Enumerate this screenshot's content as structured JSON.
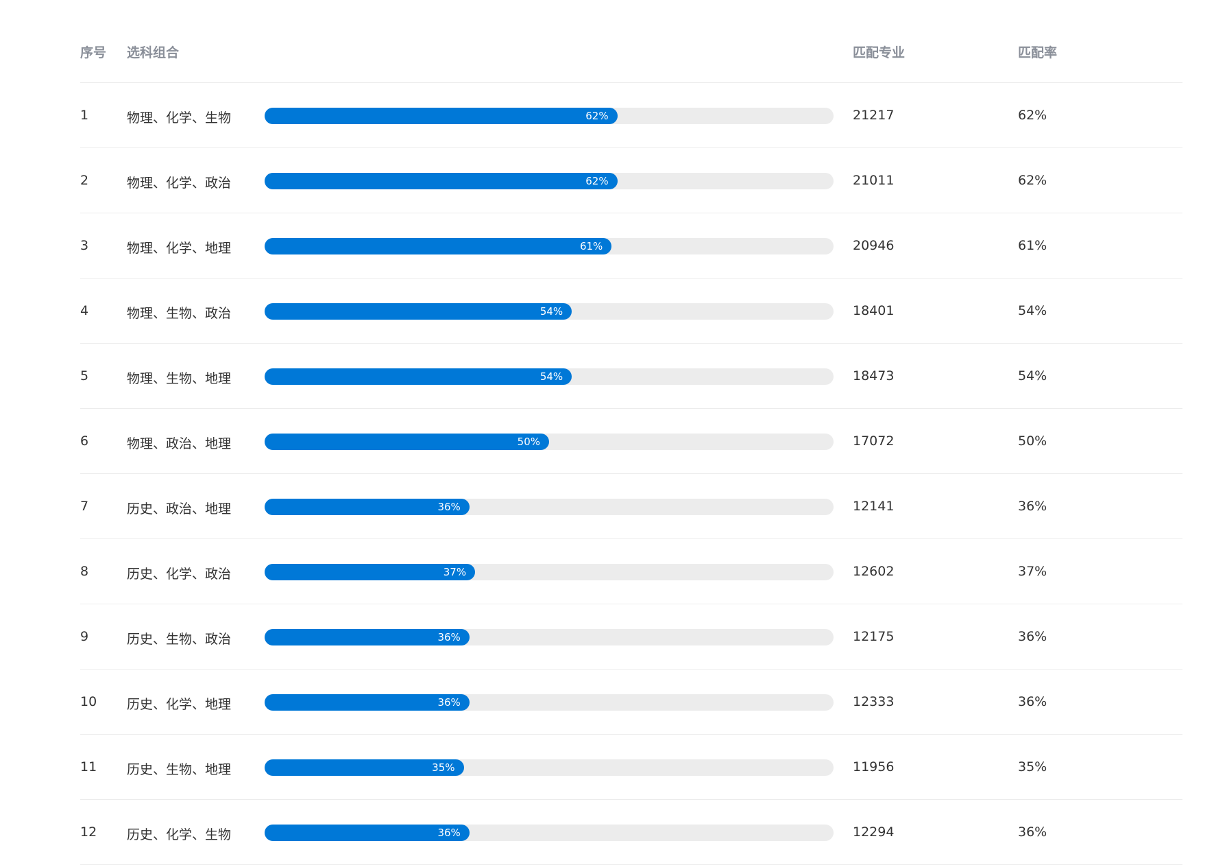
{
  "header": {
    "idx": "序号",
    "combo": "选科组合",
    "count": "匹配专业",
    "rate": "匹配率"
  },
  "rows": [
    {
      "idx": "1",
      "combo": "物理、化学、生物",
      "rate_value": 62,
      "rate_label": "62%",
      "count": "21217",
      "rate": "62%"
    },
    {
      "idx": "2",
      "combo": "物理、化学、政治",
      "rate_value": 62,
      "rate_label": "62%",
      "count": "21011",
      "rate": "62%"
    },
    {
      "idx": "3",
      "combo": "物理、化学、地理",
      "rate_value": 61,
      "rate_label": "61%",
      "count": "20946",
      "rate": "61%"
    },
    {
      "idx": "4",
      "combo": "物理、生物、政治",
      "rate_value": 54,
      "rate_label": "54%",
      "count": "18401",
      "rate": "54%"
    },
    {
      "idx": "5",
      "combo": "物理、生物、地理",
      "rate_value": 54,
      "rate_label": "54%",
      "count": "18473",
      "rate": "54%"
    },
    {
      "idx": "6",
      "combo": "物理、政治、地理",
      "rate_value": 50,
      "rate_label": "50%",
      "count": "17072",
      "rate": "50%"
    },
    {
      "idx": "7",
      "combo": "历史、政治、地理",
      "rate_value": 36,
      "rate_label": "36%",
      "count": "12141",
      "rate": "36%"
    },
    {
      "idx": "8",
      "combo": "历史、化学、政治",
      "rate_value": 37,
      "rate_label": "37%",
      "count": "12602",
      "rate": "37%"
    },
    {
      "idx": "9",
      "combo": "历史、生物、政治",
      "rate_value": 36,
      "rate_label": "36%",
      "count": "12175",
      "rate": "36%"
    },
    {
      "idx": "10",
      "combo": "历史、化学、地理",
      "rate_value": 36,
      "rate_label": "36%",
      "count": "12333",
      "rate": "36%"
    },
    {
      "idx": "11",
      "combo": "历史、生物、地理",
      "rate_value": 35,
      "rate_label": "35%",
      "count": "11956",
      "rate": "35%"
    },
    {
      "idx": "12",
      "combo": "历史、化学、生物",
      "rate_value": 36,
      "rate_label": "36%",
      "count": "12294",
      "rate": "36%"
    }
  ],
  "colors": {
    "bar_fill": "#0078d7",
    "bar_track": "#ececec",
    "header_text": "#8a8f99"
  }
}
